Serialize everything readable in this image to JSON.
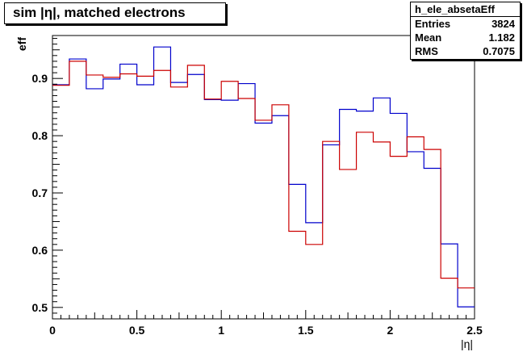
{
  "title": "sim |η|, matched electrons",
  "stats": {
    "name": "h_ele_absetaEff",
    "rows": [
      {
        "label": "Entries",
        "value": "3824"
      },
      {
        "label": "Mean",
        "value": "1.182"
      },
      {
        "label": "RMS",
        "value": "0.7075"
      }
    ]
  },
  "chart_data": {
    "type": "line",
    "title": "sim |η|, matched electrons",
    "xlabel": "|η|",
    "ylabel": "eff",
    "xlim": [
      0,
      2.5
    ],
    "ylim": [
      0.48,
      0.975
    ],
    "xticks": [
      0,
      0.5,
      1,
      1.5,
      2,
      2.5
    ],
    "xtick_labels": [
      "0",
      "0.5",
      "1",
      "1.5",
      "2",
      "2.5"
    ],
    "yticks": [
      0.5,
      0.6,
      0.7,
      0.8,
      0.9
    ],
    "ytick_labels": [
      "0.5",
      "0.6",
      "0.7",
      "0.8",
      "0.9"
    ],
    "grid": false,
    "bin_edges": [
      0,
      0.1,
      0.2,
      0.3,
      0.4,
      0.5,
      0.6,
      0.7,
      0.8,
      0.9,
      1.0,
      1.1,
      1.2,
      1.3,
      1.4,
      1.5,
      1.6,
      1.7,
      1.8,
      1.9,
      2.0,
      2.1,
      2.2,
      2.3,
      2.4,
      2.5
    ],
    "series": [
      {
        "color": "#0000cc",
        "values": [
          0.889,
          0.934,
          0.882,
          0.899,
          0.925,
          0.889,
          0.955,
          0.893,
          0.907,
          0.863,
          0.862,
          0.891,
          0.822,
          0.835,
          0.715,
          0.648,
          0.784,
          0.846,
          0.843,
          0.866,
          0.839,
          0.772,
          0.743,
          0.611,
          0.501
        ]
      },
      {
        "color": "#cc0000",
        "values": [
          0.888,
          0.93,
          0.906,
          0.902,
          0.908,
          0.904,
          0.914,
          0.885,
          0.923,
          0.864,
          0.895,
          0.865,
          0.827,
          0.854,
          0.633,
          0.61,
          0.79,
          0.741,
          0.806,
          0.789,
          0.764,
          0.798,
          0.776,
          0.551,
          0.534
        ]
      }
    ]
  }
}
